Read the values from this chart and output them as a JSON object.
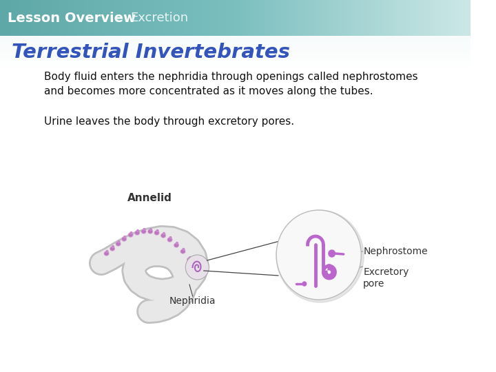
{
  "header_text1": "Lesson Overview",
  "header_text2": "Excretion",
  "header_text1_color": "#ffffff",
  "header_text2_color": "#e8f5f5",
  "title_text": "Terrestrial Invertebrates",
  "title_color": "#3355bb",
  "body_text1": "Body fluid enters the nephridia through openings called nephrostomes\nand becomes more concentrated as it moves along the tubes.",
  "body_text2": "Urine leaves the body through excretory pores.",
  "body_text_color": "#111111",
  "annelid_label": "Annelid",
  "nephridia_label": "Nephridia",
  "nephrostome_label": "Nephrostome",
  "excretory_pore_label": "Excretory\npore",
  "label_color": "#333333",
  "worm_fill": "#e8e8e8",
  "worm_edge": "#c0c0c0",
  "nephridia_color": "#cc88cc",
  "circle_fill": "#f5f5f5",
  "tubule_color": "#bb66cc",
  "line_color": "#444444"
}
